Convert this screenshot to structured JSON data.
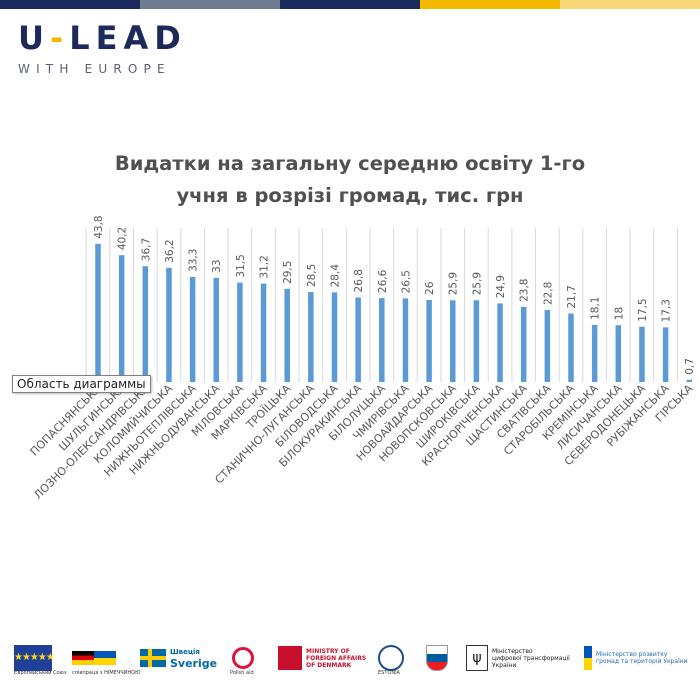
{
  "topbar": {
    "colors": [
      "#1b2a5c",
      "#6f7d91",
      "#1b2a5c",
      "#f5b800",
      "#f7d97a"
    ]
  },
  "logo": {
    "main_left": "U",
    "dash": "-",
    "main_right": "LEAD",
    "sub": "WITH EUROPE"
  },
  "chart_data": {
    "type": "bar",
    "title_line1": "Видатки на загальну середню освіту 1-го",
    "title_line2": "учня в розрізі громад, тис. грн",
    "bar_color": "#5b9bd5",
    "grid": true,
    "categories": [
      "ПОПАСНЯНСЬКА",
      "ШУЛЬГИНСЬКА",
      "ЛОЗНО-ОЛЕКСАНДРІВСЬКА",
      "КОЛОМИЙЧИСЬКА",
      "НИЖНЬОТЕПЛІВСЬКА",
      "НИЖНЬОДУВАНСЬКА",
      "МІЛОВСЬКА",
      "МАРКІВСЬКА",
      "ТРОЇЦЬКА",
      "СТАНИЧНО-ЛУГАНСЬКА",
      "БІЛОВОДСЬКА",
      "БІЛОКУРАКИНСЬКА",
      "БІЛОЛУЦЬКА",
      "ЧМИРІВСЬКА",
      "НОВОАЙДАРСЬКА",
      "НОВОПСКОВСЬКА",
      "ШИРОКІВСЬКА",
      "КРАСНОРІЧЕНСЬКА",
      "ЩАСТИНСЬКА",
      "СВАТІВСЬКА",
      "СТАРОБІЛЬСЬКА",
      "КРЕМІНСЬКА",
      "ЛИСИЧАНСЬКА",
      "СЄВЕРОДОНЕЦЬКА",
      "РУБІЖАНСЬКА",
      "ГІРСЬКА"
    ],
    "values": [
      43.8,
      40.2,
      36.7,
      36.2,
      33.3,
      33,
      31.5,
      31.2,
      29.5,
      28.5,
      28.4,
      26.8,
      26.6,
      26.5,
      26,
      25.9,
      25.9,
      24.9,
      23.8,
      22.8,
      21.7,
      18.1,
      18,
      17.5,
      17.3,
      0.7
    ],
    "value_labels": [
      "43,8",
      "40,2",
      "36,7",
      "36,2",
      "33,3",
      "33",
      "31,5",
      "31,2",
      "29,5",
      "28,5",
      "28,4",
      "26,8",
      "26,6",
      "26,5",
      "26",
      "25,9",
      "25,9",
      "24,9",
      "23,8",
      "22,8",
      "21,7",
      "18,1",
      "18",
      "17,5",
      "17,3",
      "0,7"
    ],
    "ylim": [
      0,
      45
    ]
  },
  "tooltip": "Область диаграммы",
  "footer": {
    "eu_caption": "Європейський Союз",
    "de_caption": "співпраця з НІМЕЧЧИНОЮ",
    "se_line1": "Швеція",
    "se_line2": "Sverige",
    "pl_caption": "Polish aid",
    "dk_line1": "MINISTRY OF",
    "dk_line2": "FOREIGN AFFAIRS",
    "dk_line3": "OF DENMARK",
    "ee_caption": "ESTONIA",
    "mdt_line1": "Міністерство",
    "mdt_line2": "цифрової трансформації",
    "mdt_line3": "України",
    "mr_line1": "Міністерство розвитку",
    "mr_line2": "громад та територій України"
  }
}
